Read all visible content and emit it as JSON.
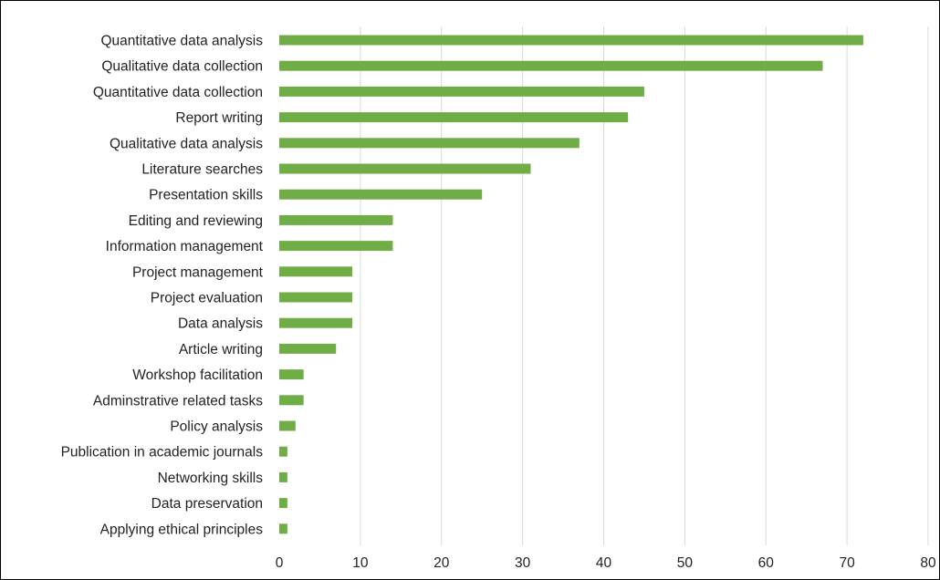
{
  "chart_data": {
    "type": "bar",
    "orientation": "horizontal",
    "categories": [
      "Quantitative data analysis",
      "Qualitative data collection",
      "Quantitative data collection",
      "Report writing",
      "Qualitative data analysis",
      "Literature searches",
      "Presentation skills",
      "Editing and reviewing",
      "Information management",
      "Project management",
      "Project evaluation",
      "Data analysis",
      "Article writing",
      "Workshop facilitation",
      "Adminstrative related tasks",
      "Policy analysis",
      "Publication in academic journals",
      "Networking skills",
      "Data preservation",
      "Applying ethical principles"
    ],
    "values": [
      72,
      67,
      45,
      43,
      37,
      31,
      25,
      14,
      14,
      9,
      9,
      9,
      7,
      3,
      3,
      2,
      1,
      1,
      1,
      1
    ],
    "xlim": [
      0,
      80
    ],
    "xticks": [
      0,
      10,
      20,
      30,
      40,
      50,
      60,
      70,
      80
    ],
    "grid": "vertical",
    "legend": "none",
    "bar_color": "#70ad47",
    "title": "",
    "xlabel": "",
    "ylabel": ""
  }
}
